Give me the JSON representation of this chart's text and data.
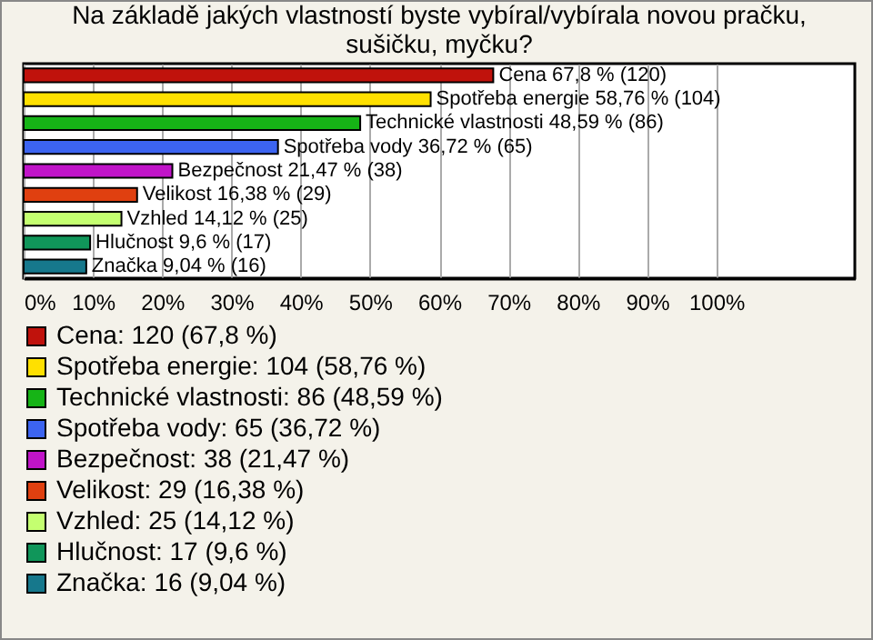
{
  "chart_data": {
    "type": "bar",
    "orientation": "horizontal",
    "title": "Na základě jakých vlastností byste vybíral/vybírala novou pračku, sušičku, myčku?",
    "categories": [
      null,
      null,
      null,
      null,
      null,
      null,
      null,
      null,
      null
    ],
    "series": [
      {
        "name": "Cena: 120 (67,8 %)",
        "color": "#c0120c",
        "values": [
          67.8,
          null,
          null,
          null,
          null,
          null,
          null,
          null,
          null
        ],
        "value_labels": [
          "Cena 67,8 % (120)",
          null,
          null,
          null,
          null,
          null,
          null,
          null,
          null
        ]
      },
      {
        "name": "Spotřeba energie: 104 (58,76 %)",
        "color": "#ffe000",
        "values": [
          null,
          58.76,
          null,
          null,
          null,
          null,
          null,
          null,
          null
        ],
        "value_labels": [
          null,
          "Spotřeba energie 58,76 % (104)",
          null,
          null,
          null,
          null,
          null,
          null,
          null
        ]
      },
      {
        "name": "Technické vlastnosti: 86 (48,59 %)",
        "color": "#16b416",
        "values": [
          null,
          null,
          48.59,
          null,
          null,
          null,
          null,
          null,
          null
        ],
        "value_labels": [
          null,
          null,
          "Technické vlastnosti 48,59 % (86)",
          null,
          null,
          null,
          null,
          null,
          null
        ]
      },
      {
        "name": "Spotřeba vody: 65 (36,72 %)",
        "color": "#3c64f0",
        "values": [
          null,
          null,
          null,
          36.72,
          null,
          null,
          null,
          null,
          null
        ],
        "value_labels": [
          null,
          null,
          null,
          "Spotřeba vody 36,72 % (65)",
          null,
          null,
          null,
          null,
          null
        ]
      },
      {
        "name": "Bezpečnost: 38 (21,47 %)",
        "color": "#c014c8",
        "values": [
          null,
          null,
          null,
          null,
          21.47,
          null,
          null,
          null,
          null
        ],
        "value_labels": [
          null,
          null,
          null,
          null,
          "Bezpečnost 21,47 % (38)",
          null,
          null,
          null,
          null
        ]
      },
      {
        "name": "Velikost: 29 (16,38 %)",
        "color": "#e04010",
        "values": [
          null,
          null,
          null,
          null,
          null,
          16.38,
          null,
          null,
          null
        ],
        "value_labels": [
          null,
          null,
          null,
          null,
          null,
          "Velikost 16,38 % (29)",
          null,
          null,
          null
        ]
      },
      {
        "name": "Vzhled: 25 (14,12 %)",
        "color": "#c4ff70",
        "values": [
          null,
          null,
          null,
          null,
          null,
          null,
          14.12,
          null,
          null
        ],
        "value_labels": [
          null,
          null,
          null,
          null,
          null,
          null,
          "Vzhled 14,12 % (25)",
          null,
          null
        ]
      },
      {
        "name": "Hlučnost: 17 (9,6 %)",
        "color": "#10965a",
        "values": [
          null,
          null,
          null,
          null,
          null,
          null,
          null,
          9.6,
          null
        ],
        "value_labels": [
          null,
          null,
          null,
          null,
          null,
          null,
          null,
          "Hlučnost 9,6 % (17)",
          null
        ]
      },
      {
        "name": "Značka: 16 (9,04 %)",
        "color": "#16788c",
        "values": [
          null,
          null,
          null,
          null,
          null,
          null,
          null,
          null,
          9.04
        ],
        "value_labels": [
          null,
          null,
          null,
          null,
          null,
          null,
          null,
          null,
          "Značka 9,04 % (16)"
        ]
      }
    ],
    "xlim": [
      0,
      120
    ],
    "xticks": [
      {
        "value": 0,
        "label": "0%"
      },
      {
        "value": 10,
        "label": "10%"
      },
      {
        "value": 20,
        "label": "20%"
      },
      {
        "value": 30,
        "label": "30%"
      },
      {
        "value": 40,
        "label": "40%"
      },
      {
        "value": 50,
        "label": "50%"
      },
      {
        "value": 60,
        "label": "60%"
      },
      {
        "value": 70,
        "label": "70%"
      },
      {
        "value": 80,
        "label": "80%"
      },
      {
        "value": 90,
        "label": "90%"
      },
      {
        "value": 100,
        "label": "100%"
      }
    ],
    "grid": "x",
    "legend": "bottom left",
    "tick_labels": "x"
  }
}
